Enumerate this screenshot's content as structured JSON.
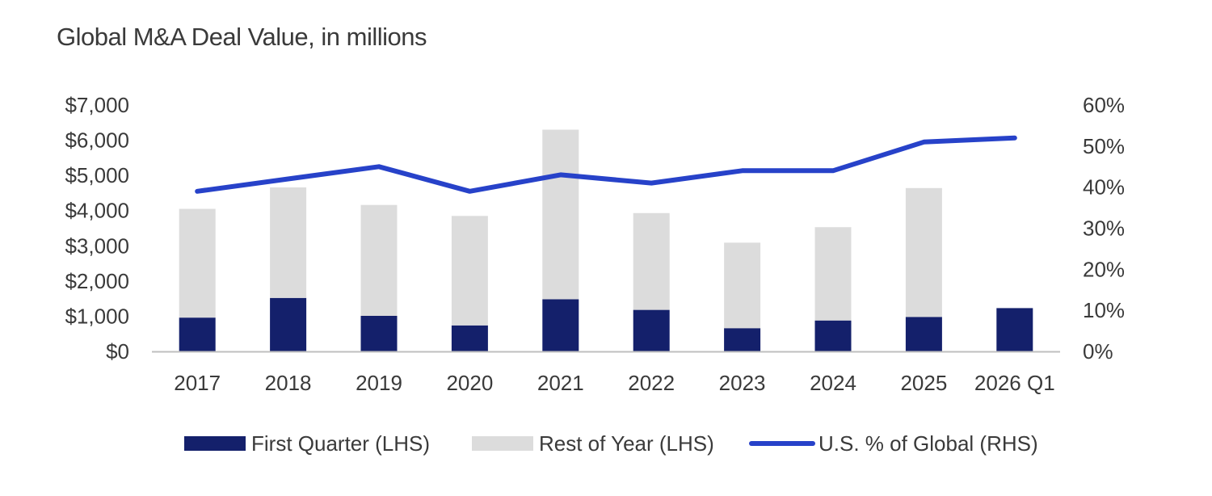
{
  "chart_data": {
    "type": "bar",
    "title": "Global M&A Deal Value, in millions",
    "categories": [
      "2017",
      "2018",
      "2019",
      "2020",
      "2021",
      "2022",
      "2023",
      "2024",
      "2025",
      "2026 Q1"
    ],
    "series": [
      {
        "name": "First Quarter (LHS)",
        "kind": "bar",
        "stack": "deal-value",
        "axis": "left",
        "color": "#14206b",
        "values": [
          960,
          1520,
          1010,
          740,
          1480,
          1180,
          660,
          880,
          980,
          1230
        ]
      },
      {
        "name": "Rest of Year (LHS)",
        "kind": "bar",
        "stack": "deal-value",
        "axis": "left",
        "color": "#dcdcdc",
        "values": [
          3090,
          3140,
          3150,
          3110,
          4820,
          2750,
          2430,
          2650,
          3660,
          0
        ]
      },
      {
        "name": "U.S. % of Global (RHS)",
        "kind": "line",
        "axis": "right",
        "color": "#2742c9",
        "values": [
          39,
          42,
          45,
          39,
          43,
          41,
          44,
          44,
          51,
          52
        ]
      }
    ],
    "y_left": {
      "ylim": [
        0,
        7000
      ],
      "ticks": [
        0,
        1000,
        2000,
        3000,
        4000,
        5000,
        6000,
        7000
      ],
      "tick_labels": [
        "$0",
        "$1,000",
        "$2,000",
        "$3,000",
        "$4,000",
        "$5,000",
        "$6,000",
        "$7,000"
      ]
    },
    "y_right": {
      "ylim": [
        0,
        60
      ],
      "ticks": [
        0,
        10,
        20,
        30,
        40,
        50,
        60
      ],
      "tick_labels": [
        "0%",
        "10%",
        "20%",
        "30%",
        "40%",
        "50%",
        "60%"
      ]
    },
    "axis_color": "#bfbfbf",
    "text_color": "#3a3a3a",
    "grid": false,
    "legend_position": "bottom"
  }
}
